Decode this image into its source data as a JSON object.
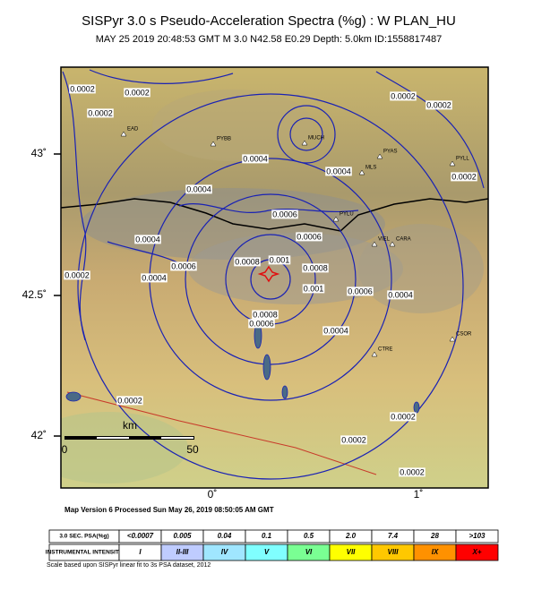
{
  "header": {
    "title": "SISPyr 3.0 s Pseudo-Acceleration Spectra (%g) : W PLAN_HU",
    "subtitle": "MAY 25 2019 20:48:53  GMT   M 3.0   N42.58 E0.29   Depth: 5.0km   ID:1558817487"
  },
  "map": {
    "lat_labels": [
      "43˚",
      "42.5˚",
      "42˚"
    ],
    "lon_labels": [
      "0˚",
      "1˚"
    ],
    "scale_bar": {
      "unit": "km",
      "labels": [
        "0",
        "50"
      ]
    },
    "contour_labels": [
      "0.0002",
      "0.0002",
      "0.0002",
      "0.0002",
      "0.0002",
      "0.0002",
      "0.0002",
      "0.0002",
      "0.0002",
      "0.0002",
      "0.0002",
      "0.0004",
      "0.0004",
      "0.0004",
      "0.0004",
      "0.0004",
      "0.0004",
      "0.0004",
      "0.0006",
      "0.0006",
      "0.0006",
      "0.0006",
      "0.0006",
      "0.0008",
      "0.0008",
      "0.0008",
      "0.001",
      "0.001"
    ],
    "stations": [
      "EAD",
      "PYBB",
      "MUCH",
      "PYAS",
      "MLS",
      "PYLL",
      "PYLU",
      "VIEL",
      "CARA",
      "CSOR",
      "CTRE"
    ]
  },
  "footer": {
    "version": "Map Version 6 Processed Sun May 26, 2019 08:50:05 AM GMT"
  },
  "legend": {
    "rows": [
      [
        "3.0 SEC. PSA(%g)",
        "<0.0007",
        "0.005",
        "0.04",
        "0.1",
        "0.5",
        "2.0",
        "7.4",
        "28",
        ">103"
      ],
      [
        "INSTRUMENTAL INTENSITY",
        "I",
        "II-III",
        "IV",
        "V",
        "VI",
        "VII",
        "VIII",
        "IX",
        "X+"
      ]
    ],
    "note": "Scale based upon SISPyr linear fit to 3s PSA dataset, 2012"
  }
}
